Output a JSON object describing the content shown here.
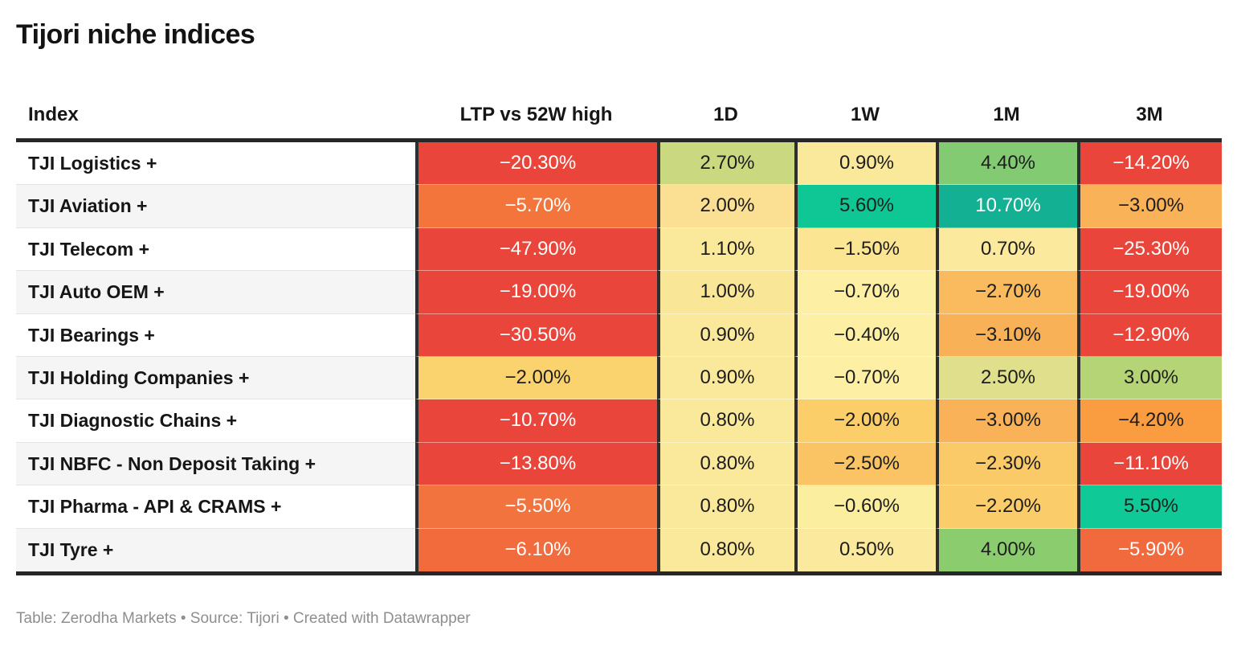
{
  "title": "Tijori niche indices",
  "footer": "Table: Zerodha Markets • Source: Tijori • Created with Datawrapper",
  "colors": {
    "negative_strong": "#e9453a",
    "negative_mid": "#f2703d",
    "neutral": "#fae89b",
    "positive_mid": "#8bcd6e",
    "positive_strong": "#14b093",
    "header_border": "#262626",
    "row_stripe": "#f5f5f5",
    "footer_text": "#8e8e8e"
  },
  "chart_data": {
    "type": "table",
    "title": "Tijori niche indices",
    "columns": [
      "Index",
      "LTP vs 52W high",
      "1D",
      "1W",
      "1M",
      "3M"
    ],
    "rows": [
      {
        "name": "TJI Logistics +",
        "cells": [
          {
            "v": "−20.30%",
            "bg": "#e9453a",
            "fg": "#ffffff"
          },
          {
            "v": "2.70%",
            "bg": "#cad87f",
            "fg": "#1d1d1d"
          },
          {
            "v": "0.90%",
            "bg": "#fae89b",
            "fg": "#1d1d1d"
          },
          {
            "v": "4.40%",
            "bg": "#82cb73",
            "fg": "#1d1d1d"
          },
          {
            "v": "−14.20%",
            "bg": "#e9453a",
            "fg": "#ffffff"
          }
        ]
      },
      {
        "name": "TJI Aviation +",
        "cells": [
          {
            "v": "−5.70%",
            "bg": "#f3753c",
            "fg": "#ffffff"
          },
          {
            "v": "2.00%",
            "bg": "#fbdf93",
            "fg": "#1d1d1d"
          },
          {
            "v": "5.60%",
            "bg": "#0ec795",
            "fg": "#1d1d1d"
          },
          {
            "v": "10.70%",
            "bg": "#14b093",
            "fg": "#ffffff"
          },
          {
            "v": "−3.00%",
            "bg": "#f9b258",
            "fg": "#1d1d1d"
          }
        ]
      },
      {
        "name": "TJI Telecom +",
        "cells": [
          {
            "v": "−47.90%",
            "bg": "#e9453a",
            "fg": "#ffffff"
          },
          {
            "v": "1.10%",
            "bg": "#fae89b",
            "fg": "#1d1d1d"
          },
          {
            "v": "−1.50%",
            "bg": "#fbe593",
            "fg": "#1d1d1d"
          },
          {
            "v": "0.70%",
            "bg": "#fbe99d",
            "fg": "#1d1d1d"
          },
          {
            "v": "−25.30%",
            "bg": "#e9453a",
            "fg": "#ffffff"
          }
        ]
      },
      {
        "name": "TJI Auto OEM +",
        "cells": [
          {
            "v": "−19.00%",
            "bg": "#e9453a",
            "fg": "#ffffff"
          },
          {
            "v": "1.00%",
            "bg": "#fae697",
            "fg": "#1d1d1d"
          },
          {
            "v": "−0.70%",
            "bg": "#fdf0a4",
            "fg": "#1d1d1d"
          },
          {
            "v": "−2.70%",
            "bg": "#f9bb5d",
            "fg": "#1d1d1d"
          },
          {
            "v": "−19.00%",
            "bg": "#e9453a",
            "fg": "#ffffff"
          }
        ]
      },
      {
        "name": "TJI Bearings +",
        "cells": [
          {
            "v": "−30.50%",
            "bg": "#e9453a",
            "fg": "#ffffff"
          },
          {
            "v": "0.90%",
            "bg": "#fae89b",
            "fg": "#1d1d1d"
          },
          {
            "v": "−0.40%",
            "bg": "#fdf0a4",
            "fg": "#1d1d1d"
          },
          {
            "v": "−3.10%",
            "bg": "#f8b156",
            "fg": "#1d1d1d"
          },
          {
            "v": "−12.90%",
            "bg": "#e9453a",
            "fg": "#ffffff"
          }
        ]
      },
      {
        "name": "TJI Holding Companies +",
        "cells": [
          {
            "v": "−2.00%",
            "bg": "#fbd36e",
            "fg": "#1d1d1d"
          },
          {
            "v": "0.90%",
            "bg": "#fae89b",
            "fg": "#1d1d1d"
          },
          {
            "v": "−0.70%",
            "bg": "#fdf0a4",
            "fg": "#1d1d1d"
          },
          {
            "v": "2.50%",
            "bg": "#dfdf8c",
            "fg": "#1d1d1d"
          },
          {
            "v": "3.00%",
            "bg": "#b4d476",
            "fg": "#1d1d1d"
          }
        ]
      },
      {
        "name": "TJI Diagnostic Chains +",
        "cells": [
          {
            "v": "−10.70%",
            "bg": "#e9453a",
            "fg": "#ffffff"
          },
          {
            "v": "0.80%",
            "bg": "#fae89b",
            "fg": "#1d1d1d"
          },
          {
            "v": "−2.00%",
            "bg": "#fbce69",
            "fg": "#1d1d1d"
          },
          {
            "v": "−3.00%",
            "bg": "#f9b258",
            "fg": "#1d1d1d"
          },
          {
            "v": "−4.20%",
            "bg": "#f99d40",
            "fg": "#1d1d1d"
          }
        ]
      },
      {
        "name": "TJI NBFC - Non Deposit Taking +",
        "cells": [
          {
            "v": "−13.80%",
            "bg": "#e9453a",
            "fg": "#ffffff"
          },
          {
            "v": "0.80%",
            "bg": "#fae89b",
            "fg": "#1d1d1d"
          },
          {
            "v": "−2.50%",
            "bg": "#fac464",
            "fg": "#1d1d1d"
          },
          {
            "v": "−2.30%",
            "bg": "#fbca68",
            "fg": "#1d1d1d"
          },
          {
            "v": "−11.10%",
            "bg": "#e9453a",
            "fg": "#ffffff"
          }
        ]
      },
      {
        "name": "TJI Pharma - API & CRAMS +",
        "cells": [
          {
            "v": "−5.50%",
            "bg": "#f2733e",
            "fg": "#ffffff"
          },
          {
            "v": "0.80%",
            "bg": "#fae89b",
            "fg": "#1d1d1d"
          },
          {
            "v": "−0.60%",
            "bg": "#fcee9f",
            "fg": "#1d1d1d"
          },
          {
            "v": "−2.20%",
            "bg": "#fbcd6a",
            "fg": "#1d1d1d"
          },
          {
            "v": "5.50%",
            "bg": "#0fca96",
            "fg": "#1d1d1d"
          }
        ]
      },
      {
        "name": "TJI Tyre +",
        "cells": [
          {
            "v": "−6.10%",
            "bg": "#f16b3d",
            "fg": "#ffffff"
          },
          {
            "v": "0.80%",
            "bg": "#fae89b",
            "fg": "#1d1d1d"
          },
          {
            "v": "0.50%",
            "bg": "#fbe99d",
            "fg": "#1d1d1d"
          },
          {
            "v": "4.00%",
            "bg": "#8bcd6e",
            "fg": "#1d1d1d"
          },
          {
            "v": "−5.90%",
            "bg": "#f16a3e",
            "fg": "#ffffff"
          }
        ]
      }
    ]
  }
}
